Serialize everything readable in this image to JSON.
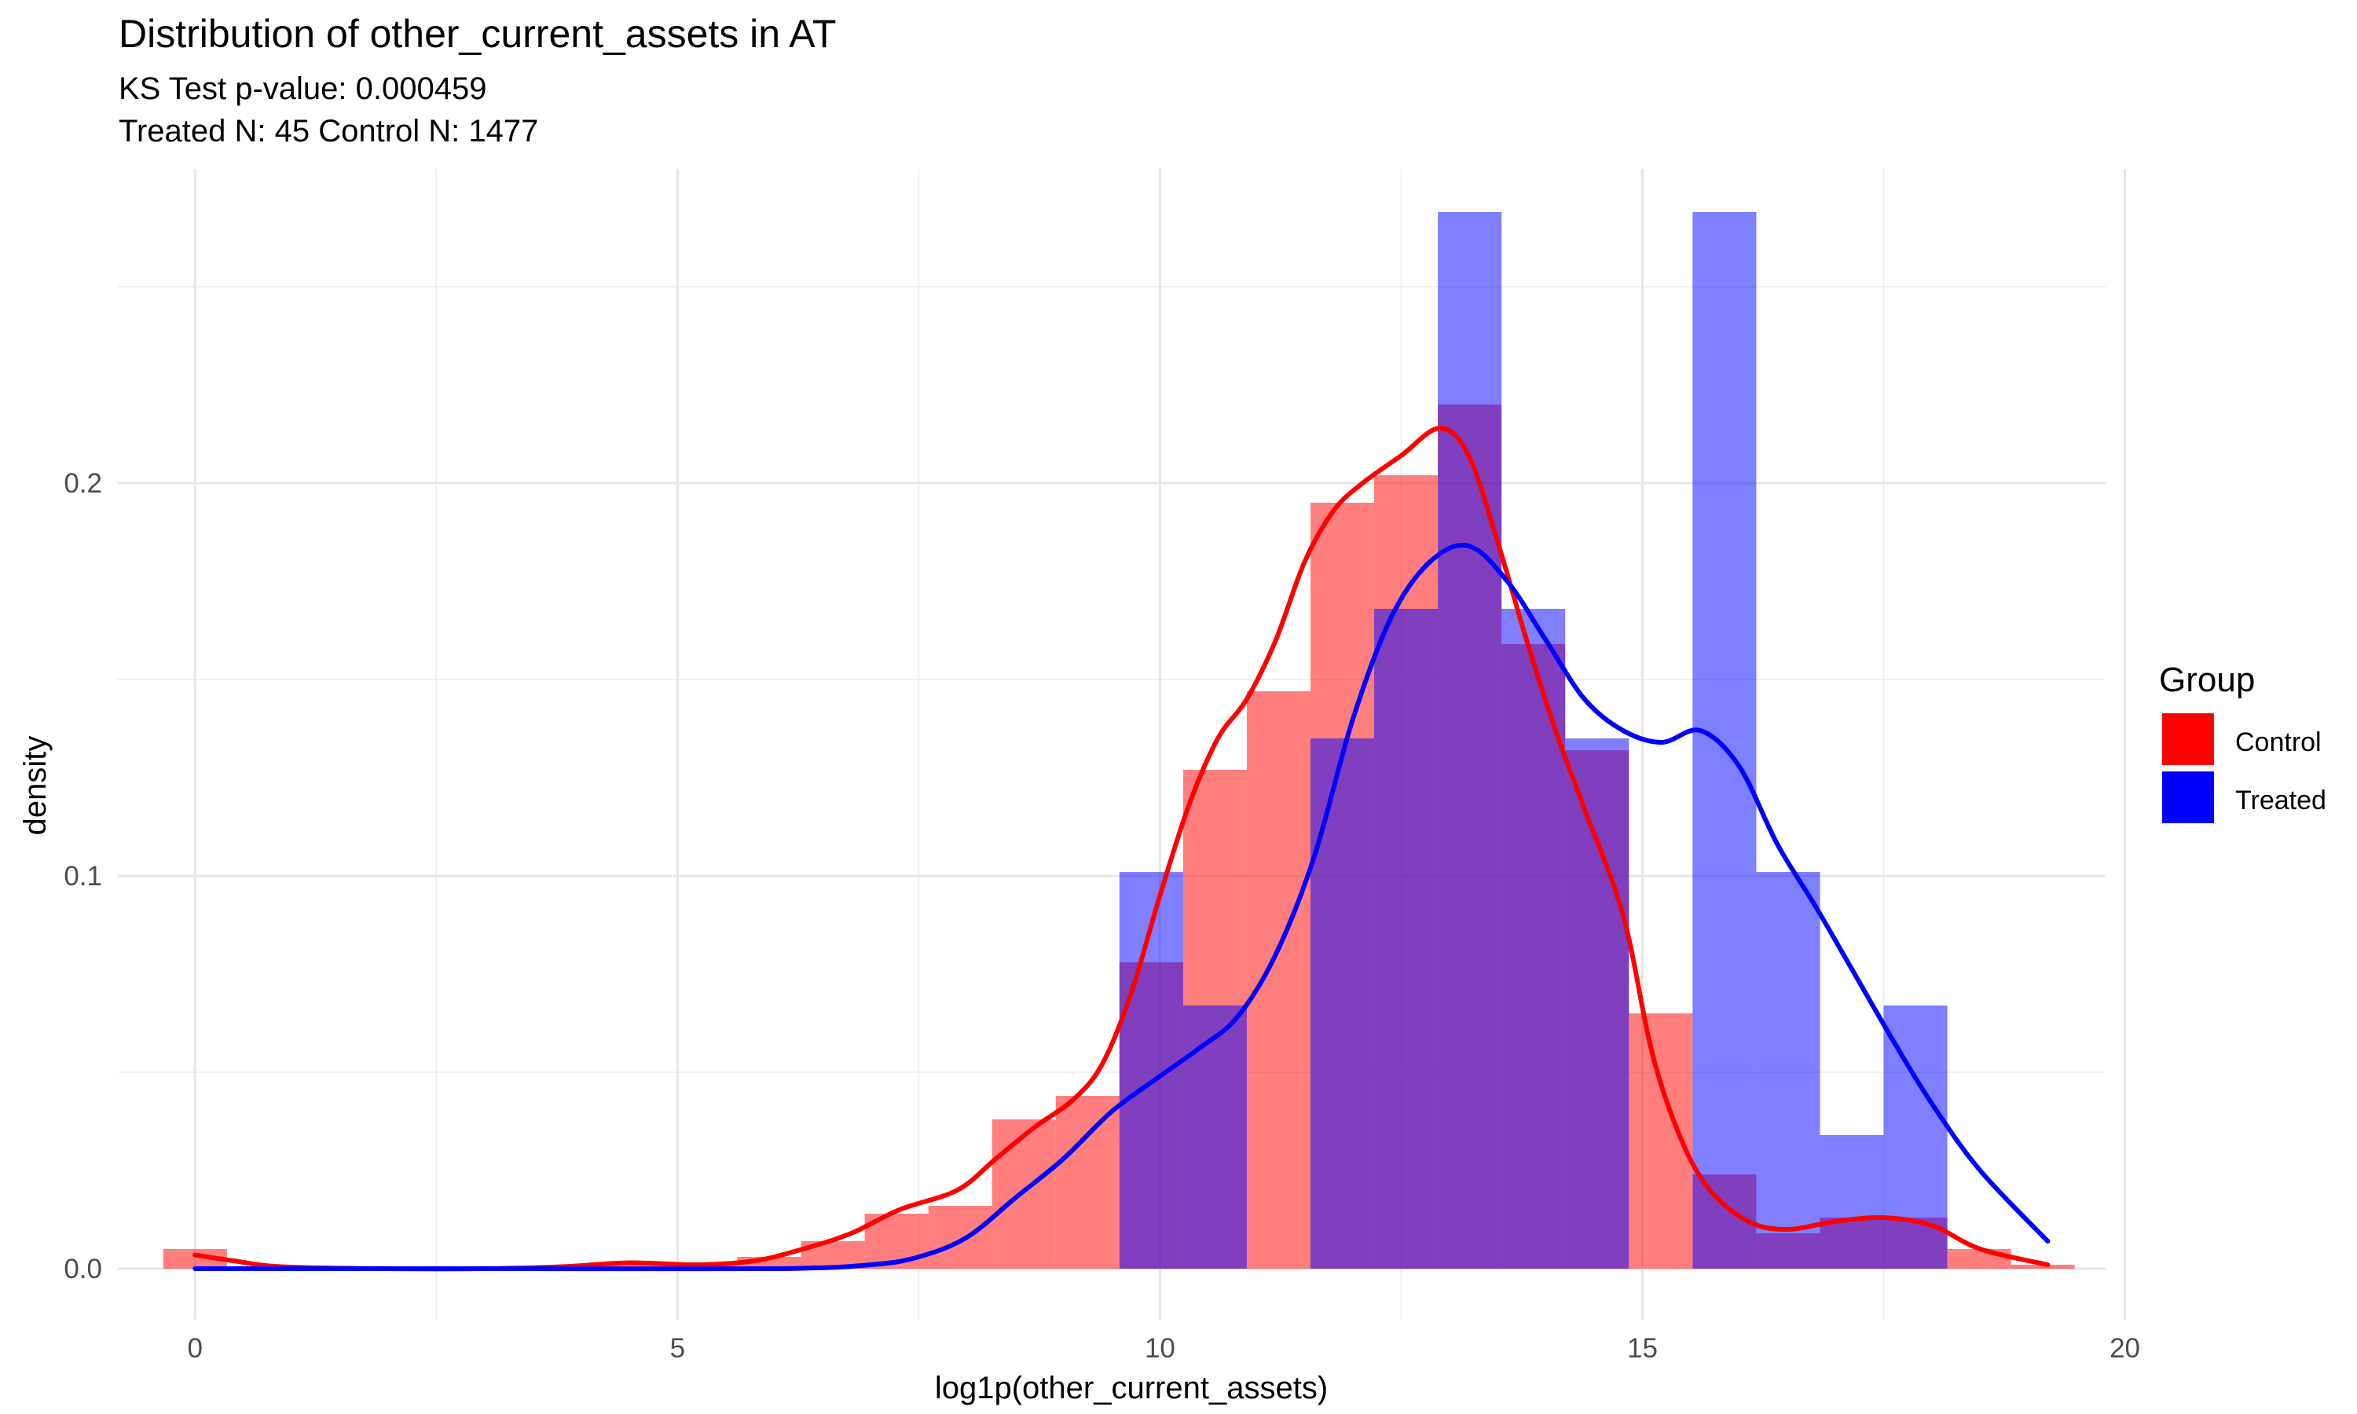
{
  "chart_data": {
    "type": "histogram",
    "title": "Distribution of other_current_assets in AT",
    "subtitle_lines": [
      "KS Test p-value: 0.000459",
      "Treated N: 45 Control N: 1477"
    ],
    "xlabel": "log1p(other_current_assets)",
    "ylabel": "density",
    "xlim": [
      -0.8,
      19.8
    ],
    "ylim": [
      -0.013,
      0.28
    ],
    "x_ticks": [
      0,
      5,
      10,
      15,
      20
    ],
    "y_ticks": [
      0.0,
      0.1,
      0.2
    ],
    "x_tick_labels": [
      "0",
      "5",
      "10",
      "15",
      "20"
    ],
    "y_tick_labels": [
      "0.0",
      "0.1",
      "0.2"
    ],
    "grid": true,
    "legend": {
      "title": "Group",
      "position": "right",
      "entries": [
        {
          "name": "Control",
          "color": "#ff0000"
        },
        {
          "name": "Treated",
          "color": "#0000ff"
        }
      ]
    },
    "bin_width": 0.662,
    "histograms": [
      {
        "name": "Control",
        "color": "#ff0000",
        "opacity": 0.5,
        "bins": [
          {
            "x0": -0.33,
            "x1": 0.33,
            "y": 0.005
          },
          {
            "x0": 0.33,
            "x1": 3.64,
            "y": 0.0
          },
          {
            "x0": 3.64,
            "x1": 4.3,
            "y": 0.001
          },
          {
            "x0": 4.3,
            "x1": 4.96,
            "y": 0.001
          },
          {
            "x0": 4.96,
            "x1": 5.62,
            "y": 0.001
          },
          {
            "x0": 5.62,
            "x1": 6.28,
            "y": 0.003
          },
          {
            "x0": 6.28,
            "x1": 6.94,
            "y": 0.007
          },
          {
            "x0": 6.94,
            "x1": 7.6,
            "y": 0.014
          },
          {
            "x0": 7.6,
            "x1": 8.26,
            "y": 0.016
          },
          {
            "x0": 8.26,
            "x1": 8.92,
            "y": 0.038
          },
          {
            "x0": 8.92,
            "x1": 9.58,
            "y": 0.044
          },
          {
            "x0": 9.58,
            "x1": 10.24,
            "y": 0.078
          },
          {
            "x0": 10.24,
            "x1": 10.9,
            "y": 0.127
          },
          {
            "x0": 10.9,
            "x1": 11.56,
            "y": 0.147
          },
          {
            "x0": 11.56,
            "x1": 12.22,
            "y": 0.195
          },
          {
            "x0": 12.22,
            "x1": 12.88,
            "y": 0.202
          },
          {
            "x0": 12.88,
            "x1": 13.54,
            "y": 0.22
          },
          {
            "x0": 13.54,
            "x1": 14.2,
            "y": 0.159
          },
          {
            "x0": 14.2,
            "x1": 14.86,
            "y": 0.132
          },
          {
            "x0": 14.86,
            "x1": 15.52,
            "y": 0.065
          },
          {
            "x0": 15.52,
            "x1": 16.18,
            "y": 0.024
          },
          {
            "x0": 16.18,
            "x1": 16.84,
            "y": 0.009
          },
          {
            "x0": 16.84,
            "x1": 17.5,
            "y": 0.013
          },
          {
            "x0": 17.5,
            "x1": 18.16,
            "y": 0.013
          },
          {
            "x0": 18.16,
            "x1": 18.82,
            "y": 0.005
          },
          {
            "x0": 18.82,
            "x1": 19.48,
            "y": 0.001
          }
        ]
      },
      {
        "name": "Treated",
        "color": "#0000ff",
        "opacity": 0.5,
        "bins": [
          {
            "x0": 9.58,
            "x1": 10.24,
            "y": 0.101
          },
          {
            "x0": 10.24,
            "x1": 10.9,
            "y": 0.067
          },
          {
            "x0": 11.56,
            "x1": 12.22,
            "y": 0.135
          },
          {
            "x0": 12.22,
            "x1": 12.88,
            "y": 0.168
          },
          {
            "x0": 12.88,
            "x1": 13.54,
            "y": 0.269
          },
          {
            "x0": 13.54,
            "x1": 14.2,
            "y": 0.168
          },
          {
            "x0": 14.2,
            "x1": 14.86,
            "y": 0.135
          },
          {
            "x0": 15.52,
            "x1": 16.18,
            "y": 0.269
          },
          {
            "x0": 16.18,
            "x1": 16.84,
            "y": 0.101
          },
          {
            "x0": 16.84,
            "x1": 17.5,
            "y": 0.034
          },
          {
            "x0": 17.5,
            "x1": 18.16,
            "y": 0.067
          }
        ]
      }
    ],
    "density_curves": [
      {
        "name": "Control",
        "color": "#ff0000",
        "points": [
          [
            0,
            0.0035
          ],
          [
            0.4,
            0.002
          ],
          [
            0.9,
            0.0005
          ],
          [
            2,
            0.0
          ],
          [
            3,
            0.0
          ],
          [
            3.8,
            0.0005
          ],
          [
            4.5,
            0.0015
          ],
          [
            5.2,
            0.001
          ],
          [
            5.8,
            0.002
          ],
          [
            6.3,
            0.005
          ],
          [
            6.8,
            0.009
          ],
          [
            7.3,
            0.015
          ],
          [
            7.9,
            0.02
          ],
          [
            8.3,
            0.028
          ],
          [
            8.7,
            0.036
          ],
          [
            9.1,
            0.043
          ],
          [
            9.4,
            0.052
          ],
          [
            9.7,
            0.07
          ],
          [
            10.0,
            0.095
          ],
          [
            10.3,
            0.118
          ],
          [
            10.6,
            0.135
          ],
          [
            10.9,
            0.145
          ],
          [
            11.2,
            0.16
          ],
          [
            11.5,
            0.18
          ],
          [
            11.8,
            0.193
          ],
          [
            12.1,
            0.2
          ],
          [
            12.5,
            0.207
          ],
          [
            12.9,
            0.214
          ],
          [
            13.2,
            0.207
          ],
          [
            13.5,
            0.185
          ],
          [
            13.8,
            0.16
          ],
          [
            14.1,
            0.137
          ],
          [
            14.4,
            0.117
          ],
          [
            14.8,
            0.09
          ],
          [
            15.1,
            0.055
          ],
          [
            15.4,
            0.033
          ],
          [
            15.7,
            0.02
          ],
          [
            16.1,
            0.012
          ],
          [
            16.5,
            0.01
          ],
          [
            17.0,
            0.012
          ],
          [
            17.5,
            0.013
          ],
          [
            18.0,
            0.011
          ],
          [
            18.5,
            0.005
          ],
          [
            19.2,
            0.001
          ]
        ]
      },
      {
        "name": "Treated",
        "color": "#0000ff",
        "points": [
          [
            0,
            0.0
          ],
          [
            3,
            0.0
          ],
          [
            6,
            0.0
          ],
          [
            7,
            0.001
          ],
          [
            7.5,
            0.003
          ],
          [
            8.0,
            0.008
          ],
          [
            8.5,
            0.018
          ],
          [
            9.0,
            0.028
          ],
          [
            9.5,
            0.04
          ],
          [
            10.0,
            0.049
          ],
          [
            10.4,
            0.056
          ],
          [
            10.8,
            0.064
          ],
          [
            11.2,
            0.08
          ],
          [
            11.6,
            0.105
          ],
          [
            12.0,
            0.14
          ],
          [
            12.4,
            0.166
          ],
          [
            12.8,
            0.18
          ],
          [
            13.2,
            0.184
          ],
          [
            13.6,
            0.175
          ],
          [
            14.0,
            0.16
          ],
          [
            14.4,
            0.145
          ],
          [
            14.8,
            0.137
          ],
          [
            15.2,
            0.134
          ],
          [
            15.6,
            0.137
          ],
          [
            16.0,
            0.128
          ],
          [
            16.4,
            0.108
          ],
          [
            16.8,
            0.092
          ],
          [
            17.2,
            0.075
          ],
          [
            17.6,
            0.058
          ],
          [
            18.0,
            0.042
          ],
          [
            18.5,
            0.025
          ],
          [
            19.2,
            0.007
          ]
        ]
      }
    ]
  }
}
